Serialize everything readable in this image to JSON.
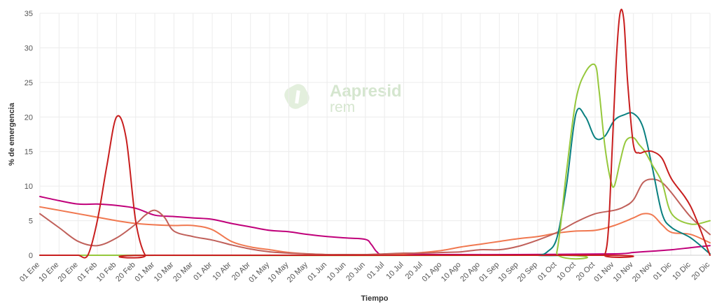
{
  "chart_data": {
    "type": "line",
    "title": "",
    "xlabel": "Tiempo",
    "ylabel": "% de emergencia",
    "ylim": [
      0,
      35
    ],
    "yticks": [
      0,
      5,
      10,
      15,
      20,
      25,
      30,
      35
    ],
    "x_categories": [
      "01 Ene",
      "10 Ene",
      "20 Ene",
      "01 Feb",
      "10 Feb",
      "20 Feb",
      "01 Mar",
      "10 Mar",
      "20 Mar",
      "01 Abr",
      "10 Abr",
      "20 Abr",
      "01 May",
      "10 May",
      "20 May",
      "01 Jun",
      "10 Jun",
      "20 Jun",
      "01 Jul",
      "10 Jul",
      "20 Jul",
      "01 Ago",
      "10 Ago",
      "20 Ago",
      "01 Sep",
      "10 Sep",
      "20 Sep",
      "01 Oct",
      "10 Oct",
      "20 Oct",
      "01 Nov",
      "10 Nov",
      "20 Nov",
      "01 Dic",
      "10 Dic",
      "20 Dic"
    ],
    "grid": true,
    "legend": "none",
    "series": [
      {
        "color": "#c0007a",
        "x": [
          0,
          1,
          2,
          3,
          4,
          5,
          6,
          7,
          8,
          9,
          10,
          11,
          12,
          13,
          14,
          15,
          16,
          17,
          17.3,
          17.6,
          18,
          20,
          25,
          30,
          31,
          32,
          33,
          34,
          35
        ],
        "y": [
          8.5,
          7.9,
          7.4,
          7.4,
          7.2,
          6.8,
          5.8,
          5.6,
          5.4,
          5.2,
          4.6,
          4.1,
          3.6,
          3.4,
          3.0,
          2.7,
          2.5,
          2.3,
          1.6,
          0.5,
          0.1,
          0.1,
          0.1,
          0.2,
          0.4,
          0.6,
          0.8,
          1.1,
          1.4
        ]
      },
      {
        "color": "#f07850",
        "x": [
          0,
          1,
          2,
          3,
          4,
          5,
          6,
          7,
          8,
          9,
          10,
          11,
          12,
          13,
          14,
          15,
          16,
          17,
          18,
          19,
          20,
          21,
          22,
          23,
          24,
          25,
          26,
          27,
          28,
          29,
          30,
          31,
          31.5,
          32,
          32.5,
          33,
          34,
          35
        ],
        "y": [
          7.0,
          6.5,
          6.0,
          5.5,
          5.0,
          4.6,
          4.4,
          4.3,
          4.3,
          3.7,
          2.0,
          1.2,
          0.8,
          0.4,
          0.2,
          0.1,
          0.1,
          0.1,
          0.1,
          0.2,
          0.4,
          0.7,
          1.2,
          1.6,
          2.0,
          2.4,
          2.7,
          3.2,
          3.5,
          3.6,
          4.3,
          5.4,
          6.0,
          5.8,
          4.4,
          3.3,
          3.0,
          1.8
        ]
      },
      {
        "color": "#c0605a",
        "x": [
          0,
          1,
          2,
          3,
          4,
          5,
          5.5,
          6,
          6.5,
          7,
          8,
          9,
          10,
          11,
          12,
          13,
          14,
          15,
          16,
          17,
          18,
          19,
          20,
          21,
          22,
          23,
          24,
          25,
          26,
          27,
          28,
          29,
          30,
          30.5,
          31,
          31.5,
          32,
          32.5,
          33,
          34,
          35
        ],
        "y": [
          6.0,
          4.0,
          2.0,
          1.4,
          2.5,
          4.5,
          5.8,
          6.5,
          5.5,
          3.5,
          2.7,
          2.2,
          1.5,
          0.9,
          0.5,
          0.3,
          0.2,
          0.1,
          0.1,
          0.1,
          0.2,
          0.3,
          0.3,
          0.4,
          0.5,
          0.8,
          0.8,
          1.3,
          2.2,
          3.3,
          4.8,
          6.0,
          6.5,
          7.0,
          8.0,
          10.5,
          11.0,
          10.5,
          9.0,
          5.5,
          3.0
        ]
      },
      {
        "color": "#0a8080",
        "x": [
          0,
          25,
          26,
          26.5,
          27,
          27.5,
          28,
          28.5,
          29,
          29.5,
          30,
          30.5,
          31,
          31.5,
          32,
          32.5,
          33,
          34,
          35
        ],
        "y": [
          0,
          0,
          0,
          0.5,
          2.5,
          10.0,
          20.5,
          20.0,
          17.0,
          17.2,
          19.5,
          20.3,
          20.5,
          18.5,
          12.5,
          6.0,
          4.0,
          2.5,
          0.2
        ]
      },
      {
        "color": "#96c83c",
        "x": [
          0,
          26.5,
          27,
          27.5,
          28,
          28.5,
          29,
          29.2,
          29.5,
          29.8,
          30,
          30.3,
          30.6,
          31,
          31.3,
          31.6,
          32,
          32.5,
          33,
          34,
          35
        ],
        "y": [
          0,
          0,
          0.5,
          12.0,
          22.5,
          26.5,
          27.5,
          24.0,
          16.0,
          11.0,
          10.0,
          13.5,
          16.5,
          17.0,
          16.0,
          15.0,
          13.0,
          10.5,
          6.0,
          4.5,
          5.0
        ]
      },
      {
        "color": "#c81e1e",
        "x": [
          0,
          1.5,
          2,
          2.5,
          3,
          3.5,
          4,
          4.5,
          5,
          5.5,
          6,
          29.2,
          29.5,
          29.7,
          29.9,
          30.1,
          30.3,
          30.5,
          30.7,
          31,
          31.3,
          31.6,
          32,
          32.5,
          33,
          34,
          35
        ],
        "y": [
          0,
          0,
          0,
          0,
          5.0,
          13.0,
          20.0,
          17.0,
          5.0,
          0,
          0,
          0,
          0,
          4.0,
          16.0,
          28.0,
          35.0,
          34.0,
          25.0,
          16.0,
          14.8,
          15.0,
          15.0,
          14.0,
          11.0,
          7.0,
          0
        ]
      }
    ]
  },
  "watermark": {
    "brand": "Aapresid",
    "sub": "rem"
  }
}
